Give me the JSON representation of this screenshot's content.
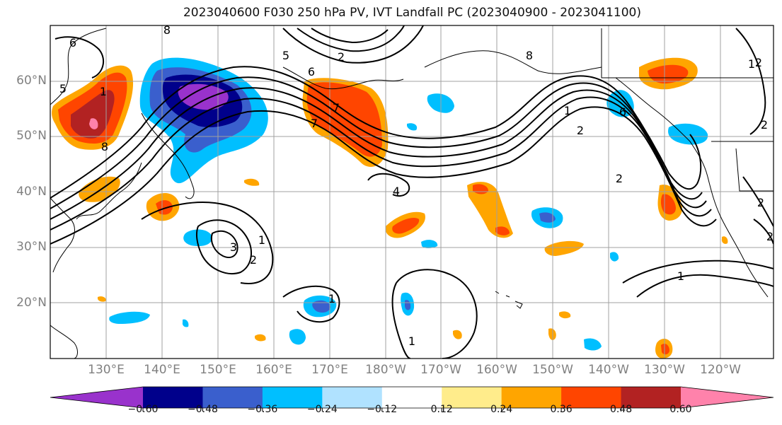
{
  "title": "2023040600 F030 250 hPa PV, IVT Landfall PC (2023040900 - 2023041100)",
  "map": {
    "lat_labels": [
      "60°N",
      "50°N",
      "40°N",
      "30°N",
      "20°N"
    ],
    "lon_labels": [
      "130°E",
      "140°E",
      "150°E",
      "160°E",
      "170°E",
      "180°W",
      "170°W",
      "160°W",
      "150°W",
      "140°W",
      "130°W",
      "120°W"
    ],
    "contour_labels": [
      "6",
      "8",
      "2",
      "5",
      "6",
      "7",
      "2",
      "1",
      "8",
      "5",
      "7",
      "4",
      "1",
      "2",
      "8",
      "6",
      "2",
      "1",
      "3",
      "2",
      "1",
      "1",
      "1",
      "1",
      "2",
      "2",
      "2"
    ]
  },
  "colorbar": {
    "ticks": [
      "−0.60",
      "−0.48",
      "−0.36",
      "−0.24",
      "−0.12",
      "0.12",
      "0.24",
      "0.36",
      "0.48",
      "0.60"
    ],
    "colors": [
      "#9932cc",
      "#00008b",
      "#3a5fcd",
      "#00bfff",
      "#b0e2ff",
      "#ffffff",
      "#ffec8b",
      "#ffa500",
      "#ff4500",
      "#b22222",
      "#ff82ab"
    ]
  }
}
